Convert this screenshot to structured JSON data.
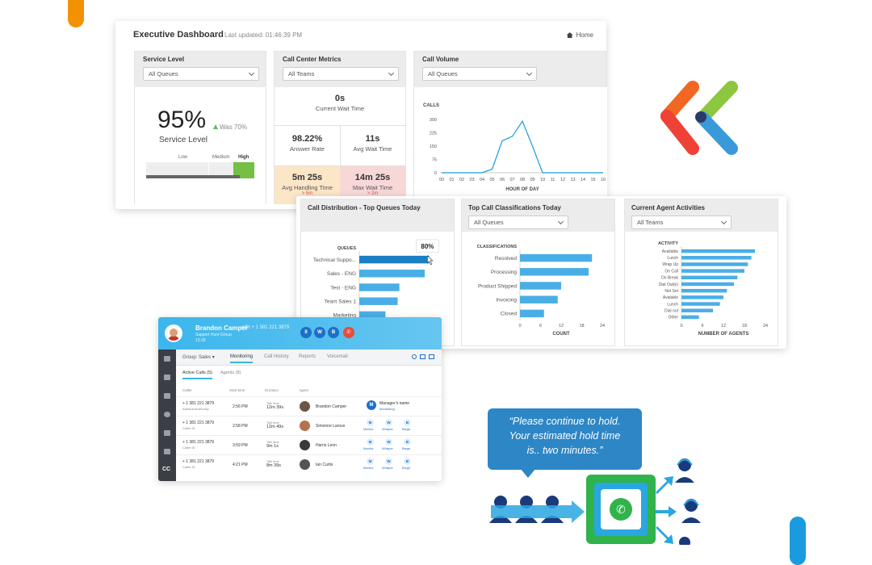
{
  "exec": {
    "title": "Executive Dashboard",
    "last_updated": "Last updated: 01:46:39 PM",
    "home_label": "Home"
  },
  "service_level": {
    "title": "Service Level",
    "filter": "All Queues",
    "percent": "95%",
    "was": "Was 70%",
    "label": "Service Level",
    "levels": [
      "Low",
      "Medium",
      "High"
    ]
  },
  "call_center_metrics": {
    "title": "Call Center Metrics",
    "filter": "All Teams",
    "current_wait": {
      "value": "0s",
      "label": "Current Wait Time"
    },
    "answer_rate": {
      "value": "98.22%",
      "label": "Answer Rate"
    },
    "avg_wait": {
      "value": "11s",
      "label": "Avg Wait Time"
    },
    "avg_handling": {
      "value": "5m 25s",
      "label": "Avg Handling Time",
      "delta": "> 5m"
    },
    "max_handling": {
      "value": "14m 25s",
      "label": "Max Wait Time",
      "delta": "> 2m"
    }
  },
  "call_volume": {
    "title": "Call Volume",
    "filter": "All Queues",
    "ylabel": "CALLS",
    "xlabel": "HOUR OF DAY"
  },
  "distribution": {
    "title": "Call Distribution - Top Queues Today",
    "axis_label": "QUEUES",
    "tooltip": "80%"
  },
  "classifications": {
    "title": "Top Call Classifications Today",
    "filter": "All Queues",
    "axis_label": "CLASSIFICATIONS",
    "xlabel": "COUNT"
  },
  "agent_activities": {
    "title": "Current Agent Activities",
    "filter": "All Teams",
    "axis_label": "ACTIVITY",
    "xlabel": "NUMBER OF AGENTS"
  },
  "chart_data": [
    {
      "type": "line",
      "title": "Call Volume",
      "ylabel": "CALLS",
      "xlabel": "HOUR OF DAY",
      "x": [
        "00",
        "01",
        "02",
        "03",
        "04",
        "05",
        "06",
        "07",
        "08",
        "09",
        "10",
        "11",
        "12",
        "13",
        "14",
        "15",
        "16"
      ],
      "values": [
        0,
        0,
        0,
        0,
        0,
        20,
        180,
        205,
        290,
        150,
        0,
        0,
        0,
        0,
        0,
        0,
        0
      ],
      "yticks": [
        0,
        75,
        150,
        225,
        300
      ],
      "ylim": [
        0,
        300
      ],
      "color": "#1a9be0"
    },
    {
      "type": "bar",
      "orientation": "horizontal",
      "title": "Call Distribution - Top Queues Today",
      "categories": [
        "Technical Suppo...",
        "Sales - ENG",
        "Test - ENG",
        "Team Sales 1",
        "Marketing"
      ],
      "values": [
        80,
        75,
        46,
        44,
        30
      ],
      "xlim": [
        0,
        100
      ],
      "highlight": 0,
      "color": "#4aaee6",
      "highlight_color": "#1a7fc4"
    },
    {
      "type": "bar",
      "orientation": "horizontal",
      "title": "Top Call Classifications Today",
      "categories": [
        "Resolved",
        "Processing",
        "Product Shipped",
        "Invoicing",
        "Closed"
      ],
      "values": [
        21,
        20,
        12,
        11,
        7
      ],
      "xticks": [
        0,
        6,
        12,
        18,
        24
      ],
      "xlim": [
        0,
        24
      ],
      "xlabel": "COUNT",
      "color": "#4aaee6"
    },
    {
      "type": "bar",
      "orientation": "horizontal",
      "title": "Current Agent Activities",
      "categories": [
        "Available",
        "Lunch",
        "Wrap Up",
        "On Call",
        "On Break",
        "Dial Out(e)",
        "Not Set",
        "Avalable",
        "Lunch",
        "Dial out",
        "Other"
      ],
      "values": [
        21,
        20,
        19,
        18,
        16,
        15,
        13,
        12,
        11,
        9,
        5
      ],
      "xticks": [
        0,
        6,
        12,
        18,
        24
      ],
      "xlim": [
        0,
        24
      ],
      "xlabel": "NUMBER OF AGENTS",
      "color": "#4aaee6"
    }
  ],
  "monitor": {
    "agent_name": "Brandon Camper",
    "with": "with + 1 381 221 3879",
    "group_line": "Support Hunt Group",
    "time": "13:39",
    "call_buttons": [
      "II",
      "W",
      "B",
      "✆"
    ],
    "group_label": "Group: Sales",
    "tabs": [
      "Monitoring",
      "Call History",
      "Reports",
      "Voicemail"
    ],
    "subtabs": [
      "Active Calls (5)",
      "Agents (8)"
    ],
    "columns": [
      "Caller",
      "Start time",
      "Duration",
      "Agent"
    ],
    "rows": [
      {
        "caller": "+ 1 381 221 3879",
        "sub": "Adriana Aramonky",
        "start": "2:56 PM",
        "dur_label": "Talk time",
        "dur": "12m 39s",
        "agent": "Brandon Camper",
        "manager": "Manager's name",
        "manager_sub": "Monitoring"
      },
      {
        "caller": "+ 1 381 221 3879",
        "sub": "Caller ID",
        "start": "2:58 PM",
        "dur_label": "Talk time",
        "dur": "12m 49s",
        "agent": "Simonne Laroux"
      },
      {
        "caller": "+ 1 381 221 3879",
        "sub": "Caller ID",
        "start": "3:59 PM",
        "dur_label": "Talk time",
        "dur": "9m 1s",
        "agent": "Harris Leon"
      },
      {
        "caller": "+ 1 381 221 3879",
        "sub": "Caller ID",
        "start": "4:21 PM",
        "dur_label": "Talk time",
        "dur": "8m 39s",
        "agent": "Ian Curtis"
      }
    ],
    "actions": [
      "Monitor",
      "Whisper",
      "Barge"
    ],
    "side_label": "CC"
  },
  "bubble": {
    "line1": "“Please continue to hold.",
    "line2": "Your estimated hold time",
    "line3": "is.. two minutes.”"
  }
}
